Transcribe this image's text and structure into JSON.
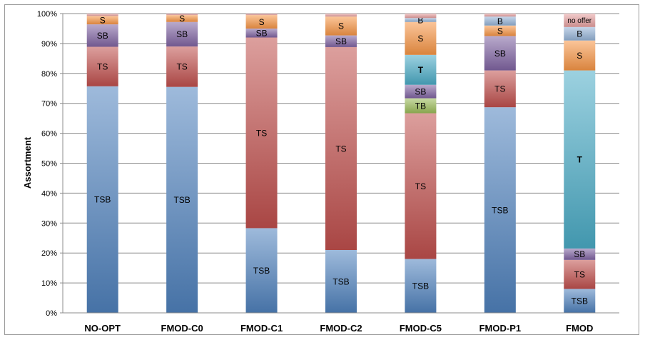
{
  "chart_data": {
    "type": "bar",
    "stacked": true,
    "percent": true,
    "ylabel": "Assortment",
    "xlabel": "",
    "ylim": [
      0,
      100
    ],
    "yticks": [
      "0%",
      "10%",
      "20%",
      "30%",
      "40%",
      "50%",
      "60%",
      "70%",
      "80%",
      "90%",
      "100%"
    ],
    "grid": true,
    "categories": [
      "NO-OPT",
      "FMOD-C0",
      "FMOD-C1",
      "FMOD-C2",
      "FMOD-C5",
      "FMOD-P1",
      "FMOD"
    ],
    "colors": {
      "TSB": "#4f81bd",
      "TS": "#c0504d",
      "TB": "#9bbb59",
      "SB": "#8064a2",
      "T": "#4bacc6",
      "S": "#f79646",
      "B": "#95b3d7",
      "no offer": "#e6a0a0"
    },
    "bars": [
      {
        "category": "NO-OPT",
        "segments": [
          {
            "label": "TSB",
            "value": 75.7
          },
          {
            "label": "TS",
            "value": 13.2
          },
          {
            "label": "SB",
            "value": 7.5
          },
          {
            "label": "S",
            "value": 2.8
          },
          {
            "label": "",
            "value": 0.8
          }
        ]
      },
      {
        "category": "FMOD-C0",
        "segments": [
          {
            "label": "TSB",
            "value": 75.5
          },
          {
            "label": "TS",
            "value": 13.5
          },
          {
            "label": "SB",
            "value": 8.2
          },
          {
            "label": "S",
            "value": 2.3
          },
          {
            "label": "",
            "value": 0.5
          }
        ]
      },
      {
        "category": "FMOD-C1",
        "segments": [
          {
            "label": "TSB",
            "value": 28.3
          },
          {
            "label": "TS",
            "value": 63.7
          },
          {
            "label": "SB",
            "value": 3.0
          },
          {
            "label": "S",
            "value": 4.5
          },
          {
            "label": "",
            "value": 0.5
          }
        ]
      },
      {
        "category": "FMOD-C2",
        "segments": [
          {
            "label": "TSB",
            "value": 21.0
          },
          {
            "label": "TS",
            "value": 67.8
          },
          {
            "label": "SB",
            "value": 3.9
          },
          {
            "label": "S",
            "value": 6.3
          },
          {
            "label": "",
            "value": 1.0
          }
        ]
      },
      {
        "category": "FMOD-C5",
        "segments": [
          {
            "label": "TSB",
            "value": 18.0
          },
          {
            "label": "TS",
            "value": 48.7
          },
          {
            "label": "TB",
            "value": 5.0
          },
          {
            "label": "SB",
            "value": 4.5
          },
          {
            "label": "T",
            "value": 10.0
          },
          {
            "label": "S",
            "value": 11.0
          },
          {
            "label": "B",
            "value": 1.3
          },
          {
            "label": "",
            "value": 1.5
          }
        ]
      },
      {
        "category": "FMOD-P1",
        "segments": [
          {
            "label": "TSB",
            "value": 68.7
          },
          {
            "label": "TS",
            "value": 12.3
          },
          {
            "label": "SB",
            "value": 11.5
          },
          {
            "label": "S",
            "value": 3.5
          },
          {
            "label": "B",
            "value": 3.0
          },
          {
            "label": "",
            "value": 1.0
          }
        ]
      },
      {
        "category": "FMOD",
        "segments": [
          {
            "label": "TSB",
            "value": 8.0
          },
          {
            "label": "TS",
            "value": 9.7
          },
          {
            "label": "SB",
            "value": 3.8
          },
          {
            "label": "T",
            "value": 59.5
          },
          {
            "label": "S",
            "value": 10.0
          },
          {
            "label": "B",
            "value": 4.5
          },
          {
            "label": "no offer",
            "value": 4.5
          }
        ]
      }
    ]
  }
}
